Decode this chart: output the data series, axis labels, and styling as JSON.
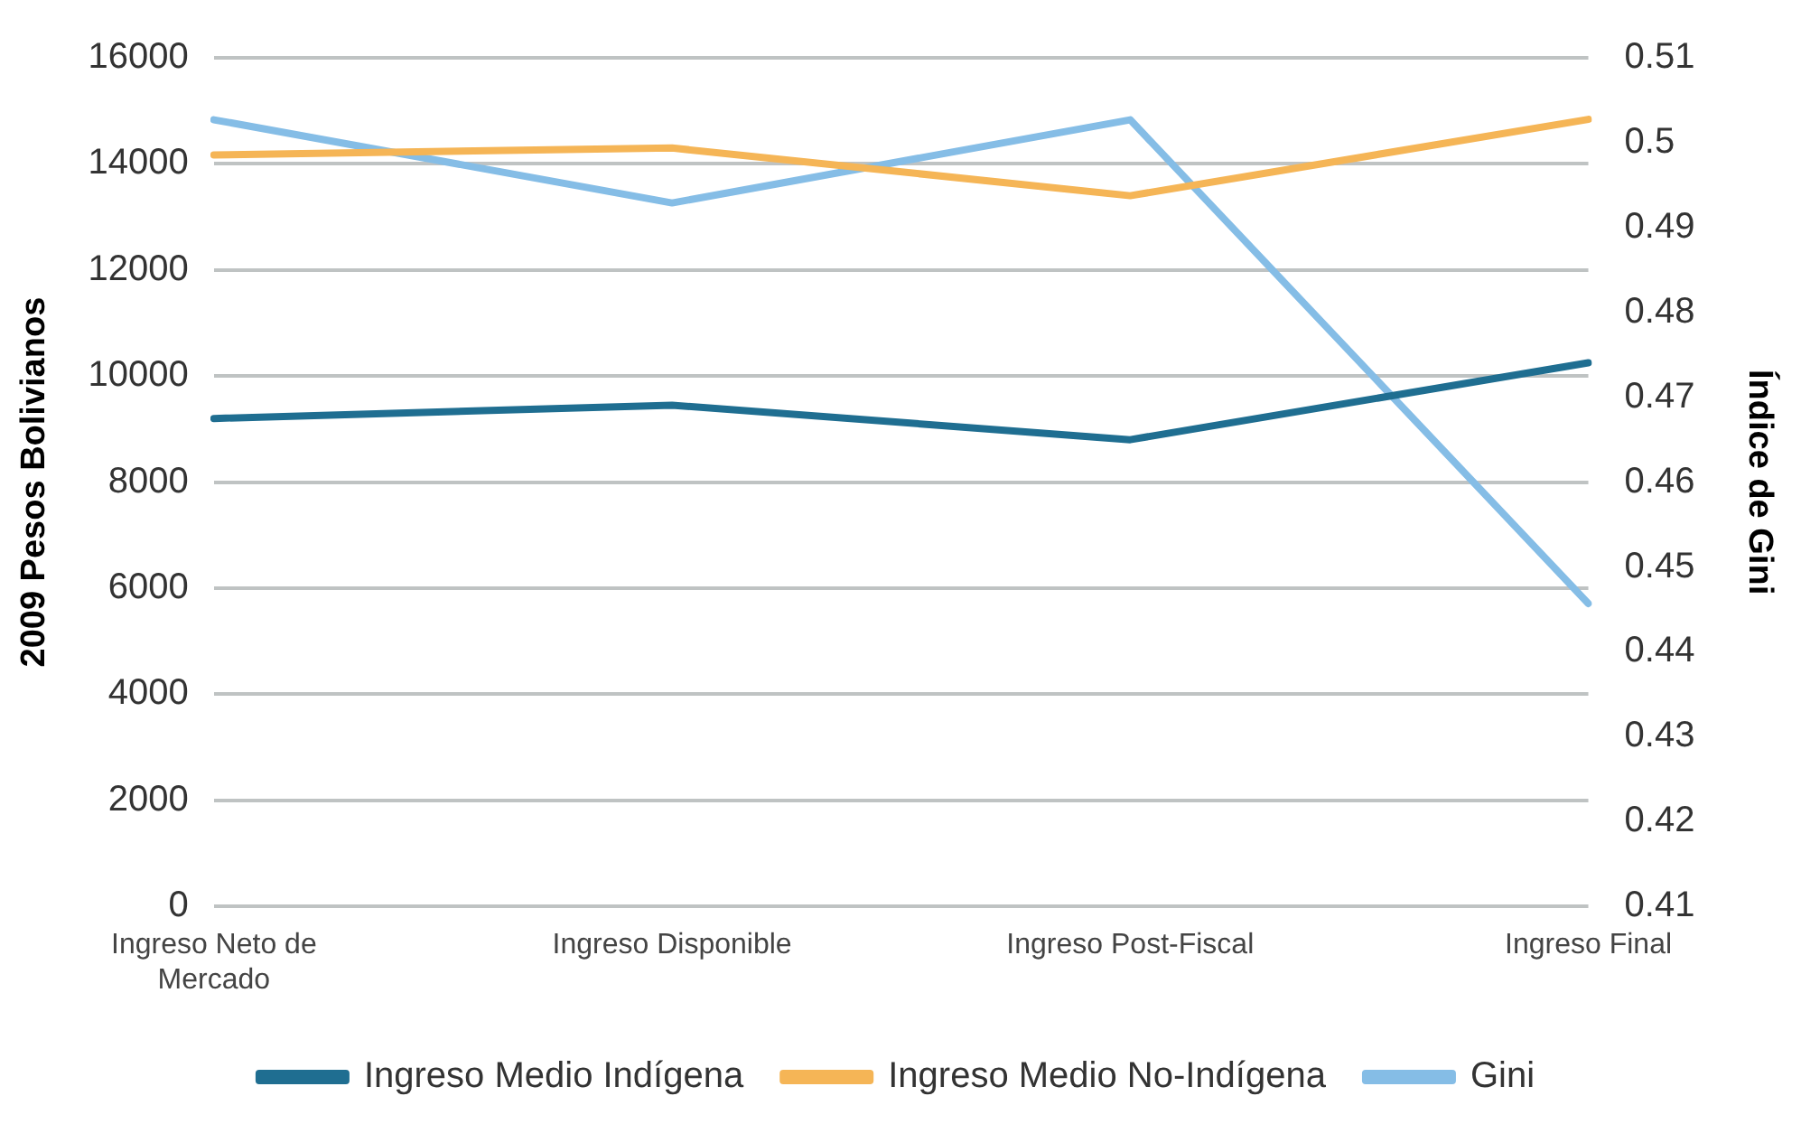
{
  "chart_data": {
    "type": "line",
    "ylabel": "2009 Pesos Bolivianos",
    "y2label": "Índice de Gini",
    "categories": [
      "Ingreso Neto de Mercado",
      "Ingreso Disponible",
      "Ingreso Post-Fiscal",
      "Ingreso Final"
    ],
    "series": [
      {
        "name": "Ingreso Medio Indígena",
        "color": "#1f6e91",
        "values": [
          9200,
          9450,
          8800,
          10250
        ]
      },
      {
        "name": "Ingreso Medio No-Indígena",
        "color": "#f5b556",
        "values": [
          14170,
          14300,
          13400,
          14840
        ]
      },
      {
        "name": "Gini",
        "color": "#85bde6",
        "axis": "y2",
        "values": [
          0.5027,
          0.4929,
          0.5027,
          0.4457
        ]
      }
    ],
    "ylim": [
      0,
      16000
    ],
    "yticks": [
      0,
      2000,
      4000,
      6000,
      8000,
      10000,
      12000,
      14000,
      16000
    ],
    "y2lim": [
      0.41,
      0.51
    ],
    "y2ticks": [
      0.41,
      0.42,
      0.43,
      0.44,
      0.45,
      0.46,
      0.47,
      0.48,
      0.49,
      0.5,
      0.51
    ],
    "grid": "y",
    "legend": "bottom",
    "marker": "none",
    "line_style": "solid"
  }
}
